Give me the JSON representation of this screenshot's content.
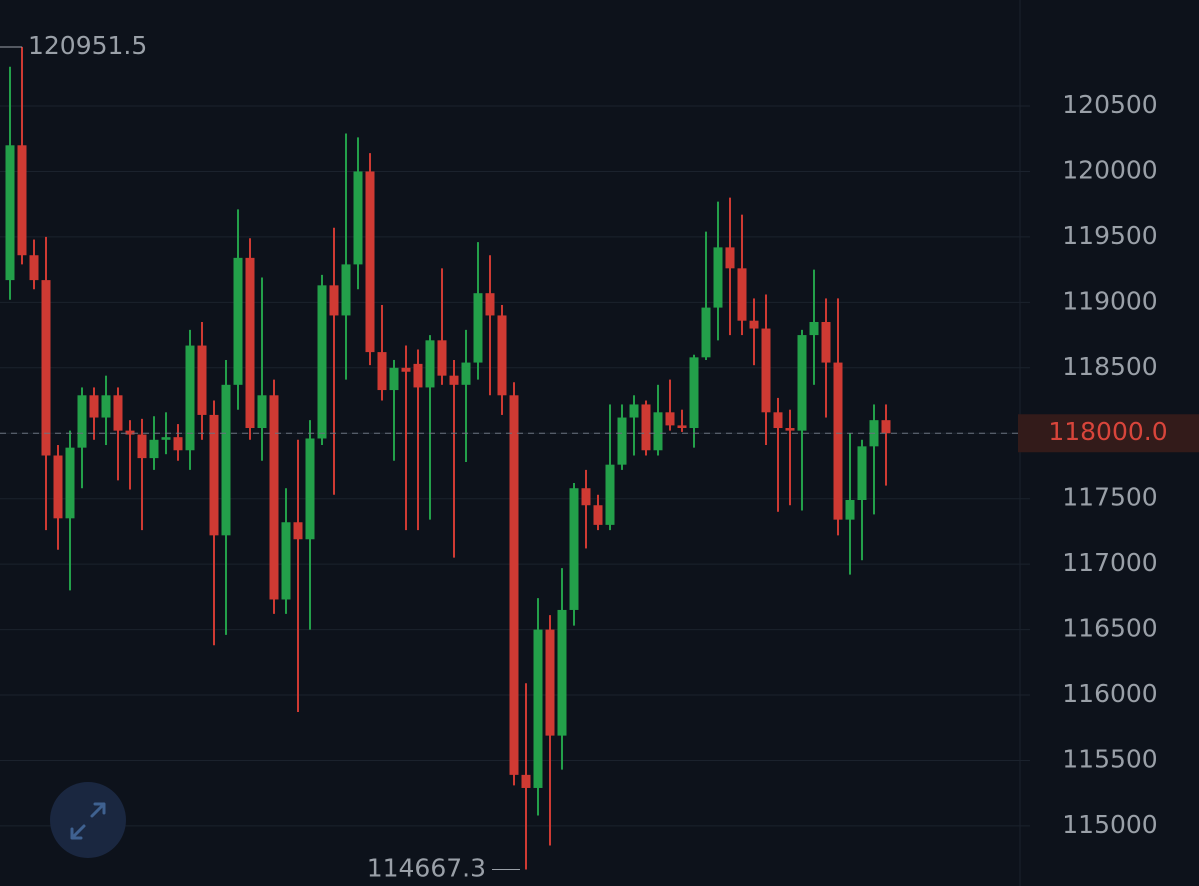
{
  "chart_data": {
    "type": "candlestick",
    "up_color": "#23a04a",
    "down_color": "#cf3a33",
    "ylim": [
      114541,
      121310
    ],
    "yticks": [
      115000,
      115500,
      116000,
      116500,
      117000,
      117500,
      118000,
      118500,
      119000,
      119500,
      120000,
      120500
    ],
    "grid": true,
    "last_price": {
      "value": 118000,
      "label": "118000.0"
    },
    "open": [
      119170,
      120200,
      119360,
      119170,
      117830,
      117350,
      117890,
      118290,
      118120,
      118290,
      118020,
      117990,
      117810,
      117950,
      117970,
      117870,
      118670,
      118140,
      117220,
      118370,
      119340,
      118040,
      118290,
      116730,
      117320,
      117190,
      117960,
      119130,
      118900,
      119290,
      120000,
      118620,
      118330,
      118500,
      118530,
      118350,
      118710,
      118440,
      118370,
      118540,
      119070,
      118900,
      118290,
      115390,
      115290,
      116500,
      115690,
      116650,
      117580,
      117450,
      117300,
      117760,
      118120,
      118220,
      117870,
      118160,
      118060,
      118040,
      118580,
      118960,
      119420,
      119260,
      118860,
      118800,
      118160,
      118040,
      118020,
      118750,
      118850,
      118540,
      117340,
      117490,
      117900,
      118100
    ],
    "high": [
      120800,
      120951.5,
      119480,
      119500,
      117910,
      118020,
      118350,
      118350,
      118440,
      118350,
      118100,
      118110,
      118130,
      118160,
      118070,
      118790,
      118850,
      118250,
      118560,
      119710,
      119490,
      119190,
      118410,
      117580,
      117950,
      118100,
      119210,
      119570,
      120290,
      120260,
      120140,
      118980,
      118560,
      118670,
      118640,
      118750,
      119260,
      118560,
      118790,
      119460,
      119360,
      118980,
      118390,
      116090,
      116740,
      116610,
      116970,
      117620,
      117720,
      117530,
      118220,
      118220,
      118290,
      118250,
      118370,
      118410,
      118180,
      118600,
      119540,
      119770,
      119800,
      119670,
      119030,
      119060,
      118270,
      118180,
      118790,
      119250,
      119030,
      119030,
      118000,
      117950,
      118220,
      118220
    ],
    "low": [
      119020,
      119290,
      119100,
      117260,
      117110,
      116800,
      117580,
      117950,
      117910,
      117640,
      117570,
      117260,
      117720,
      117840,
      117790,
      117720,
      117950,
      116380,
      116460,
      118180,
      117950,
      117790,
      116620,
      116620,
      115870,
      116500,
      117910,
      117530,
      118410,
      119100,
      118520,
      118250,
      117790,
      117260,
      117260,
      117340,
      118370,
      117050,
      117780,
      118410,
      118290,
      118140,
      115310,
      114667.3,
      115080,
      114850,
      115430,
      116530,
      117120,
      117260,
      117260,
      117720,
      117830,
      117830,
      117830,
      118020,
      118010,
      117890,
      118560,
      118710,
      118750,
      118750,
      118520,
      117910,
      117400,
      117450,
      117410,
      118370,
      118120,
      117220,
      116920,
      117030,
      117380,
      117600
    ],
    "close": [
      120200,
      119360,
      119170,
      117830,
      117350,
      117890,
      118290,
      118120,
      118290,
      118020,
      117990,
      117810,
      117950,
      117970,
      117870,
      118670,
      118140,
      117220,
      118370,
      119340,
      118040,
      118290,
      116730,
      117320,
      117190,
      117960,
      119130,
      118900,
      119290,
      120000,
      118620,
      118330,
      118500,
      118470,
      118350,
      118710,
      118440,
      118370,
      118540,
      119070,
      118900,
      118290,
      115390,
      115290,
      116500,
      115690,
      116650,
      117580,
      117450,
      117300,
      117760,
      118120,
      118220,
      117870,
      118160,
      118060,
      118040,
      118580,
      118960,
      119420,
      119260,
      118860,
      118800,
      118160,
      118040,
      118020,
      118750,
      118850,
      118540,
      117340,
      117490,
      117900,
      118100,
      118000
    ]
  }
}
